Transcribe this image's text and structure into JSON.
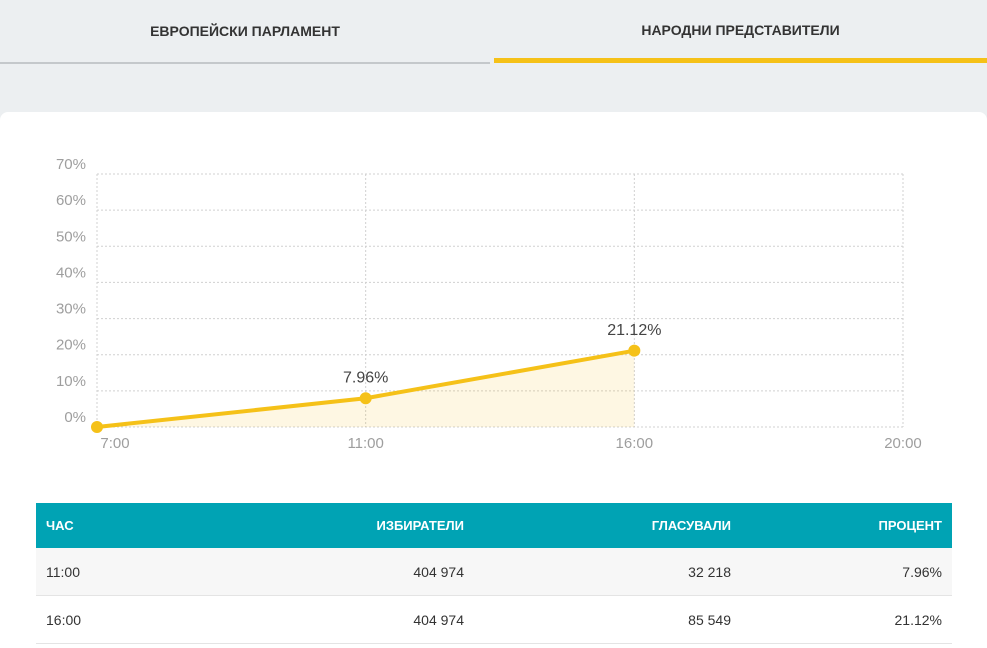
{
  "tabs": [
    "ЕВРОПЕЙСКИ ПАРЛАМЕНТ",
    "НАРОДНИ ПРЕДСТАВИТЕЛИ"
  ],
  "chart_data": {
    "type": "line",
    "categories": [
      "7:00",
      "11:00",
      "16:00",
      "20:00"
    ],
    "series": [
      {
        "color": "#f5c118",
        "values": [
          0,
          7.96,
          21.12,
          null
        ],
        "value_labels": [
          null,
          "7.96%",
          "21.12%",
          null
        ]
      }
    ],
    "ylim": [
      0,
      70
    ],
    "yticks": [
      {
        "value": 0,
        "label": "0%"
      },
      {
        "value": 10,
        "label": "10%"
      },
      {
        "value": 20,
        "label": "20%"
      },
      {
        "value": 30,
        "label": "30%"
      },
      {
        "value": 40,
        "label": "40%"
      },
      {
        "value": 50,
        "label": "50%"
      },
      {
        "value": 60,
        "label": "60%"
      },
      {
        "value": 70,
        "label": "70%"
      }
    ],
    "grid": true
  },
  "table": {
    "header": [
      "ЧАС",
      "ИЗБИРАТЕЛИ",
      "ГЛАСУВАЛИ",
      "ПРОЦЕНТ"
    ],
    "rows": [
      [
        "11:00",
        "404 974",
        "32 218",
        "7.96%"
      ],
      [
        "16:00",
        "404 974",
        "85 549",
        "21.12%"
      ]
    ]
  }
}
